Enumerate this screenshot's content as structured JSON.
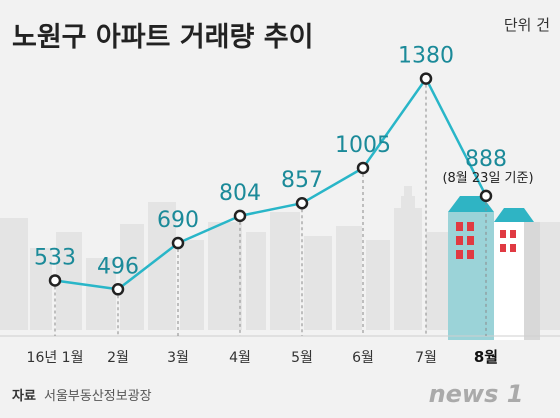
{
  "header": {
    "title": "노원구 아파트 거래량 추이",
    "unit": "단위 건"
  },
  "chart_data": {
    "type": "line",
    "title": "노원구 아파트 거래량 추이",
    "unit": "단위 건",
    "categories": [
      "16년 1월",
      "2월",
      "3월",
      "4월",
      "5월",
      "6월",
      "7월",
      "8월"
    ],
    "values": [
      533,
      496,
      690,
      804,
      857,
      1005,
      1380,
      888
    ],
    "highlight_index": 7,
    "annotation": "(8월 23일 기준)",
    "ylim": [
      300,
      1500
    ],
    "line_color": "#29b6c8",
    "value_color": "#1b8a99"
  },
  "footer": {
    "source_label": "자료",
    "source": "서울부동산정보광장",
    "logo": "news 1"
  }
}
